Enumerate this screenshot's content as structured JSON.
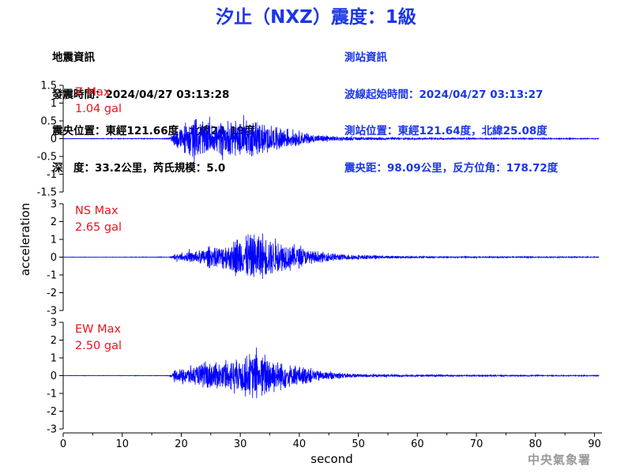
{
  "title": "汐止（NXZ）震度：1級",
  "quake_info": {
    "heading": "地震資訊",
    "time": "發震時間：2024/04/27 03:13:28",
    "location": "震央位置：東經121.66度，北緯24.19度",
    "depth": "深　度：33.2公里，芮氏規模：5.0"
  },
  "station_info": {
    "heading": "測站資訊",
    "wave_start": "波線起始時間：2024/04/27 03:13:27",
    "location": "測站位置：東經121.64度，北緯25.08度",
    "distance": "震央距：98.09公里，反方位角：178.72度"
  },
  "footer": "中央氣象署",
  "colors": {
    "trace": "#0000ff",
    "max_label": "#e8141c",
    "title": "#1b36e8"
  },
  "chart_data": {
    "type": "line",
    "xlabel": "second",
    "ylabel": "acceleration",
    "xlim": [
      0,
      91
    ],
    "xticks": [
      0,
      10,
      20,
      30,
      40,
      50,
      60,
      70,
      80,
      90
    ],
    "panels": [
      {
        "name": "Z",
        "max_label": "Z Max",
        "max_value": "1.04 gal",
        "ylim": [
          -1.5,
          1.5
        ],
        "yticks": [
          -1.5,
          -1,
          -0.5,
          0,
          0.5,
          1,
          1.5
        ],
        "ytick_labels": [
          "-1.5",
          "-1",
          "-0.5",
          "0",
          "0.5",
          "1",
          "1.5"
        ],
        "envelope": [
          {
            "t": 0,
            "a": 0.01
          },
          {
            "t": 18,
            "a": 0.02
          },
          {
            "t": 19,
            "a": 0.35
          },
          {
            "t": 20,
            "a": 0.6
          },
          {
            "t": 22,
            "a": 0.9
          },
          {
            "t": 25,
            "a": 0.7
          },
          {
            "t": 28,
            "a": 0.8
          },
          {
            "t": 30,
            "a": 0.75
          },
          {
            "t": 32,
            "a": 0.8
          },
          {
            "t": 35,
            "a": 0.6
          },
          {
            "t": 38,
            "a": 0.45
          },
          {
            "t": 42,
            "a": 0.2
          },
          {
            "t": 48,
            "a": 0.08
          },
          {
            "t": 55,
            "a": 0.05
          },
          {
            "t": 70,
            "a": 0.03
          },
          {
            "t": 91,
            "a": 0.02
          }
        ]
      },
      {
        "name": "NS",
        "max_label": "NS Max",
        "max_value": "2.65 gal",
        "ylim": [
          -3,
          3
        ],
        "yticks": [
          -3,
          -2,
          -1,
          0,
          1,
          2,
          3
        ],
        "ytick_labels": [
          "-3",
          "-2",
          "-1",
          "0",
          "1",
          "2",
          "3"
        ],
        "envelope": [
          {
            "t": 0,
            "a": 0.01
          },
          {
            "t": 18,
            "a": 0.02
          },
          {
            "t": 19,
            "a": 0.25
          },
          {
            "t": 22,
            "a": 0.5
          },
          {
            "t": 25,
            "a": 0.9
          },
          {
            "t": 28,
            "a": 1.2
          },
          {
            "t": 32,
            "a": 2.3
          },
          {
            "t": 35,
            "a": 1.8
          },
          {
            "t": 38,
            "a": 1.3
          },
          {
            "t": 42,
            "a": 0.6
          },
          {
            "t": 48,
            "a": 0.25
          },
          {
            "t": 55,
            "a": 0.12
          },
          {
            "t": 65,
            "a": 0.06
          },
          {
            "t": 91,
            "a": 0.04
          }
        ]
      },
      {
        "name": "EW",
        "max_label": "EW Max",
        "max_value": "2.50 gal",
        "ylim": [
          -3,
          3
        ],
        "yticks": [
          -3,
          -2,
          -1,
          0,
          1,
          2,
          3
        ],
        "ytick_labels": [
          "-3",
          "-2",
          "-1",
          "0",
          "1",
          "2",
          "3"
        ],
        "envelope": [
          {
            "t": 0,
            "a": 0.01
          },
          {
            "t": 18,
            "a": 0.02
          },
          {
            "t": 19,
            "a": 0.45
          },
          {
            "t": 21,
            "a": 0.8
          },
          {
            "t": 24,
            "a": 1.1
          },
          {
            "t": 27,
            "a": 1.2
          },
          {
            "t": 30,
            "a": 1.6
          },
          {
            "t": 33,
            "a": 2.1
          },
          {
            "t": 36,
            "a": 1.5
          },
          {
            "t": 40,
            "a": 0.8
          },
          {
            "t": 45,
            "a": 0.35
          },
          {
            "t": 50,
            "a": 0.15
          },
          {
            "t": 60,
            "a": 0.08
          },
          {
            "t": 91,
            "a": 0.04
          }
        ]
      }
    ]
  }
}
